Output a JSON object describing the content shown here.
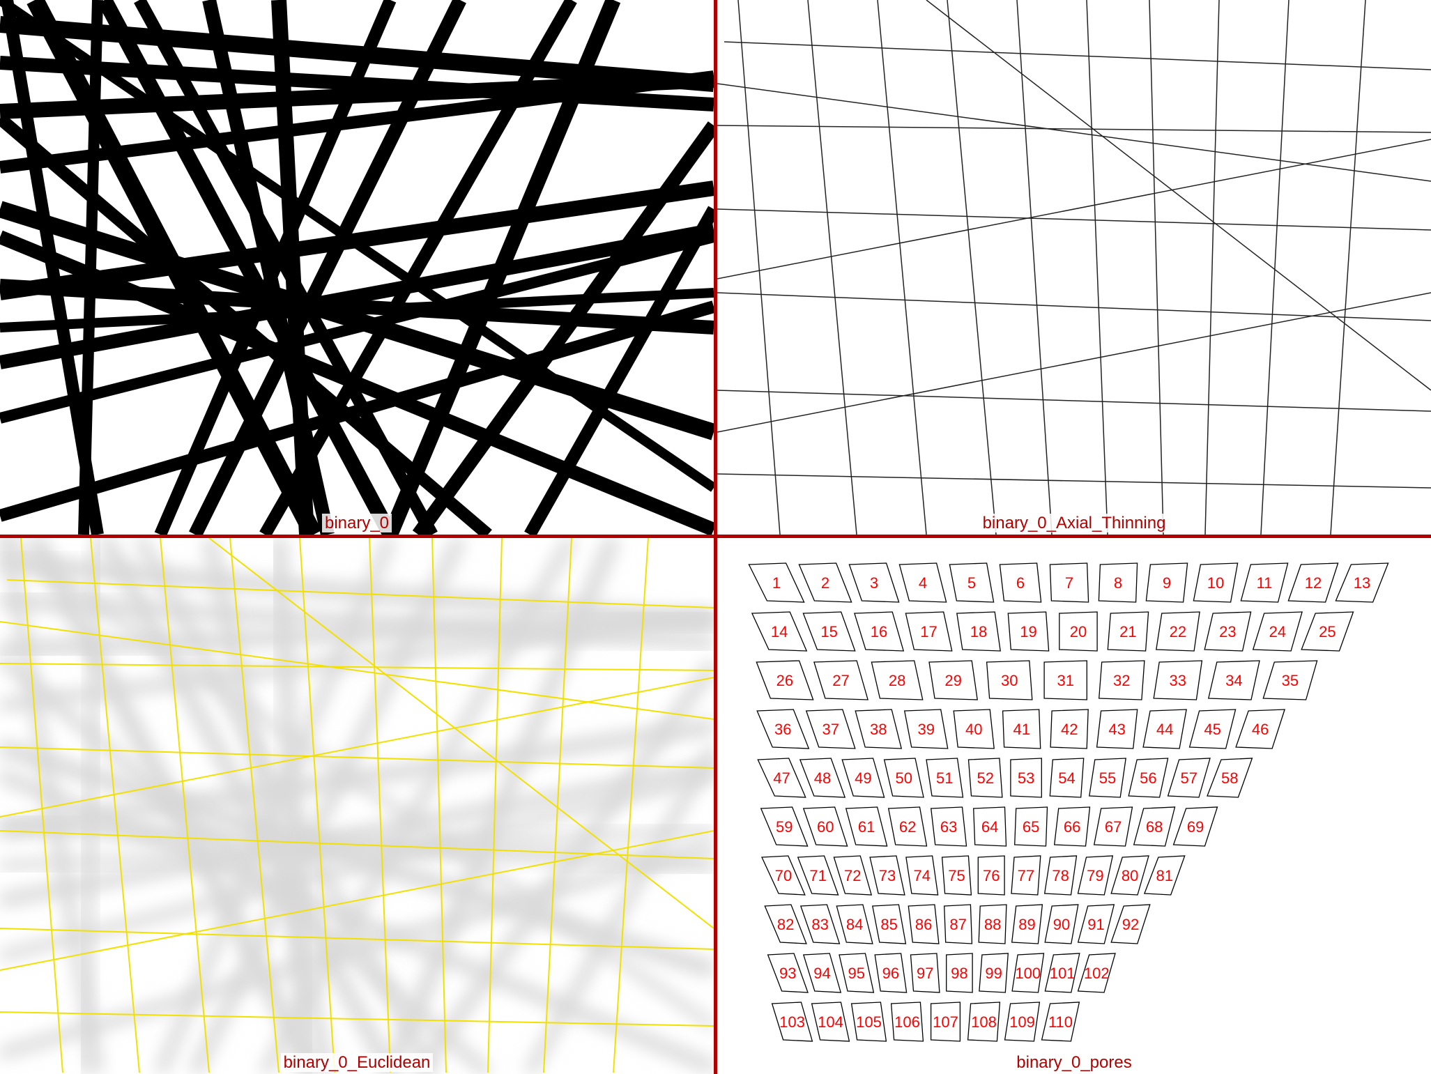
{
  "panels": [
    {
      "id": "binary",
      "caption": "binary_0"
    },
    {
      "id": "thinning",
      "caption": "binary_0_Axial_Thinning"
    },
    {
      "id": "euclidean",
      "caption": "binary_0_Euclidean"
    },
    {
      "id": "pores",
      "caption": "binary_0_pores"
    }
  ],
  "colors": {
    "divider": "#b00000",
    "caption": "#b00000",
    "fibers": "#000000",
    "skeleton": "#222222",
    "distance_edges": "#f2e000",
    "pore_labels": "#ff0000"
  },
  "pore_labels": [
    "1",
    "2",
    "3",
    "4",
    "5",
    "6",
    "7",
    "8",
    "9",
    "10",
    "11",
    "12",
    "13",
    "14",
    "15",
    "16",
    "17",
    "18",
    "19",
    "20",
    "21",
    "22",
    "23",
    "24",
    "25",
    "26",
    "27",
    "28",
    "29",
    "30",
    "31",
    "32",
    "33",
    "34",
    "35",
    "36",
    "37",
    "38",
    "39",
    "40",
    "41",
    "42",
    "43",
    "44",
    "45",
    "46",
    "47",
    "48",
    "49",
    "50",
    "51",
    "52",
    "53",
    "54",
    "55",
    "56",
    "57",
    "58",
    "59",
    "60",
    "61",
    "62",
    "63",
    "64",
    "65",
    "66",
    "67",
    "68",
    "69",
    "70",
    "71",
    "72",
    "73",
    "74",
    "75",
    "76",
    "77",
    "78",
    "79",
    "80",
    "81",
    "82",
    "83",
    "84",
    "85",
    "86",
    "87",
    "88",
    "89",
    "90",
    "91",
    "92",
    "93",
    "94",
    "95",
    "96",
    "97",
    "98",
    "99",
    "100",
    "101",
    "102",
    "103",
    "104",
    "105",
    "106",
    "107",
    "108",
    "109",
    "110"
  ]
}
